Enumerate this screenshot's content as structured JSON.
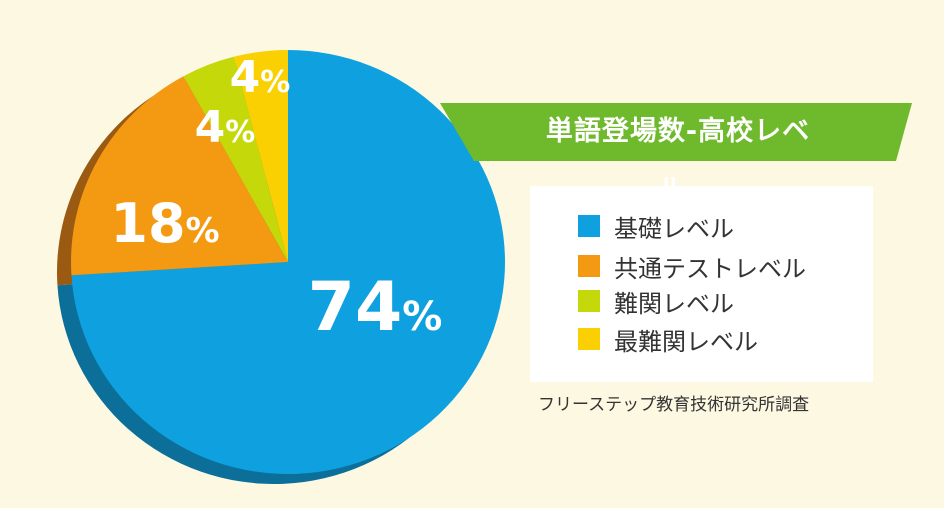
{
  "chart_data": {
    "type": "pie",
    "title": "単語登場数-高校レベル-",
    "categories": [
      "基礎レベル",
      "共通テストレベル",
      "難関レベル",
      "最難関レベル"
    ],
    "values": [
      74,
      18,
      4,
      4
    ],
    "labels": [
      "74",
      "18",
      "4",
      "4"
    ],
    "unit": "%",
    "colors": [
      "#0fa1df",
      "#f39a12",
      "#c5d90a",
      "#fbd003"
    ],
    "side_colors": [
      "#0b6f9a",
      "#9a5a12",
      "#7e8a1a",
      "#a58a14"
    ],
    "legend_position": "right",
    "source": "フリーステップ教育技術研究所調査"
  },
  "banner_color": "#6fb92c"
}
